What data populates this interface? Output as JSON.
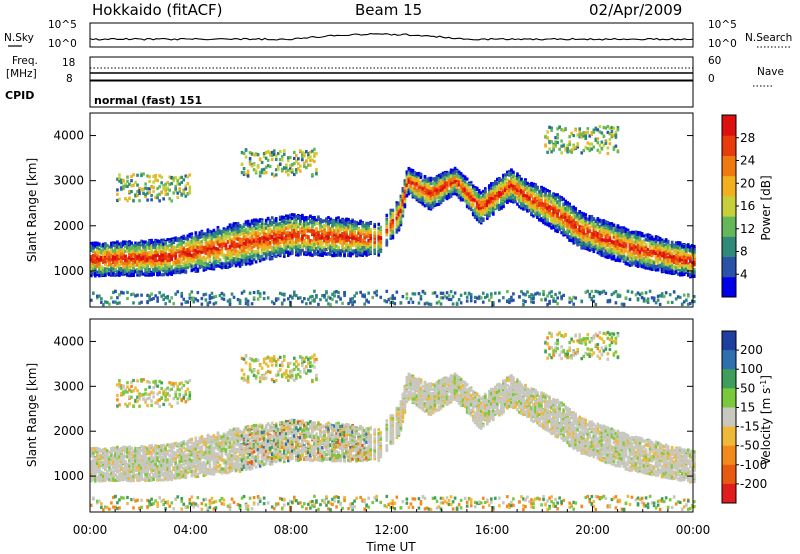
{
  "header": {
    "site": "Hokkaido (fitACF)",
    "beam": "Beam 15",
    "date": "02/Apr/2009"
  },
  "summary": {
    "nsky_label": "N.Sky",
    "nsearch_label": "N.Search",
    "freq_label_1": "Freq.",
    "freq_label_2": "[MHz]",
    "nave_label": "Nave",
    "cpid_label": "CPID",
    "cpid_value": "normal (fast) 151",
    "noise_ticks_left": [
      "10^5",
      "10^0"
    ],
    "noise_ticks_right": [
      "10^5",
      "10^0"
    ],
    "freq_ticks": [
      "18",
      "8"
    ],
    "nave_ticks": [
      "60",
      "0"
    ]
  },
  "chart_data": [
    {
      "type": "heatmap",
      "panel": "power",
      "ylabel": "Slant Range [km]",
      "ylim": [
        200,
        4500
      ],
      "yticks": [
        "1000",
        "2000",
        "3000",
        "4000"
      ],
      "colorbar_label": "Power [dB]",
      "colorbar_ticks": [
        "4",
        "8",
        "12",
        "16",
        "20",
        "24",
        "28"
      ],
      "colorbar_range": [
        0,
        32
      ]
    },
    {
      "type": "heatmap",
      "panel": "velocity",
      "ylabel": "Slant Range [km]",
      "ylim": [
        200,
        4500
      ],
      "yticks": [
        "1000",
        "2000",
        "3000",
        "4000"
      ],
      "colorbar_label": "Velocity [m s",
      "colorbar_label_sup": "-1",
      "colorbar_label_end": "]",
      "colorbar_ticks": [
        "200",
        "100",
        "50",
        "15",
        "-15",
        "-50",
        "-100",
        "-200"
      ]
    }
  ],
  "xaxis": {
    "label": "Time UT",
    "ticks": [
      "00:00",
      "04:00",
      "08:00",
      "12:00",
      "16:00",
      "20:00",
      "00:00"
    ]
  }
}
